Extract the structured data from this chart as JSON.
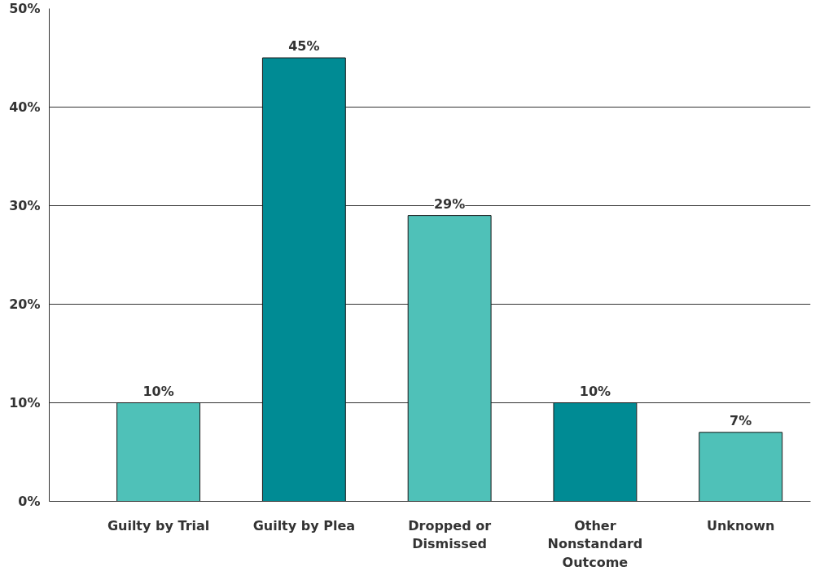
{
  "chart_data": {
    "type": "bar",
    "categories": [
      "Guilty by Trial",
      "Guilty by Plea",
      "Dropped or\nDismissed",
      "Other\nNonstandard\nOutcome",
      "Unknown"
    ],
    "values": [
      10,
      45,
      29,
      10,
      7
    ],
    "colors": [
      "#4fc1b8",
      "#008b94",
      "#4fc1b8",
      "#008b94",
      "#4fc1b8"
    ],
    "value_labels": [
      "10%",
      "45%",
      "29%",
      "10%",
      "7%"
    ],
    "ylim": [
      0,
      50
    ],
    "yticks": [
      {
        "value": 0,
        "label": "0%"
      },
      {
        "value": 10,
        "label": "10%"
      },
      {
        "value": 20,
        "label": "20%"
      },
      {
        "value": 30,
        "label": "30%"
      },
      {
        "value": 40,
        "label": "40%"
      },
      {
        "value": 50,
        "label": "50%"
      }
    ],
    "grid": "y"
  }
}
